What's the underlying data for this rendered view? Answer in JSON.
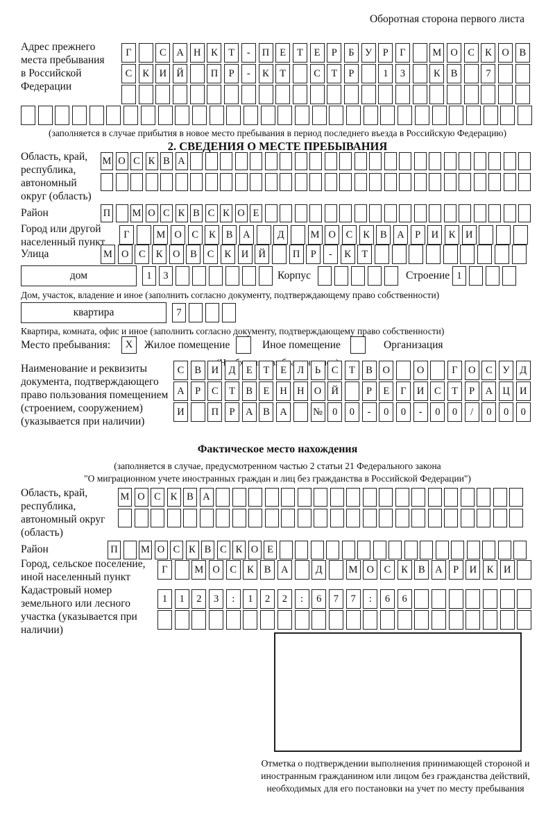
{
  "page": {
    "corner_note": "Оборотная сторона первого листа"
  },
  "prev_address": {
    "label": "Адрес прежнего места пребывания в Российской Федерации",
    "row1": {
      "text": "Г САНКТ-ПЕТЕРБУРГ МОСКОВ",
      "len": 24
    },
    "row2": {
      "text": "СКИЙ ПР-КТ СТР 13 КВ 7",
      "len": 24
    },
    "row3": {
      "text": "",
      "len": 24
    },
    "row4": {
      "text": "",
      "len": 30
    },
    "note": "(заполняется в случае прибытия в новое место пребывания в период последнего въезда в Российскую Федерацию)"
  },
  "section2": {
    "title": "2. СВЕДЕНИЯ О МЕСТЕ ПРЕБЫВАНИЯ",
    "oblast": {
      "label": "Область, край, республика, автономный округ (область)",
      "row1": {
        "text": "МОСКВА",
        "len": 29
      },
      "row2": {
        "text": "",
        "len": 29
      }
    },
    "rayon": {
      "label": "Район",
      "row": {
        "text": "П МОСКВСКОЕ",
        "len": 29
      }
    },
    "city": {
      "label": "Город или другой населенный пункт",
      "row": {
        "text": "Г МОСКВА Д МОСКВАРИКИ",
        "len": 24
      }
    },
    "street": {
      "label": "Улица",
      "row": {
        "text": "МОСКОВСКИЙ ПР-КТ",
        "len": 25
      }
    },
    "house": {
      "box_label": "дом",
      "cells": {
        "text": "13",
        "len": 8
      },
      "korpus_label": "Корпус",
      "korpus_cells": {
        "text": "",
        "len": 5
      },
      "stroenie_label": "Строение",
      "stroenie_cells": {
        "text": "1",
        "len": 4
      },
      "note": "Дом, участок, владение и иное (заполнить согласно документу, подтверждающему право собственности)"
    },
    "apartment": {
      "box_label": "квартира",
      "cells": {
        "text": "7",
        "len": 4
      },
      "note": "Квартира, комната, офис и иное (заполнить согласно документу, подтверждающему право собственности)"
    },
    "stay_type": {
      "label": "Место пребывания:",
      "options": [
        {
          "mark": "X",
          "label": "Жилое помещение"
        },
        {
          "mark": "",
          "label": "Иное помещение"
        },
        {
          "mark": "",
          "label": "Организация"
        }
      ],
      "note": "(Необходимо выбрать нужное)"
    },
    "doc": {
      "label": "Наименование и реквизиты документа, подтверждающего право пользования помещением (строением, сооружением) (указывается при наличии)",
      "row1": {
        "text": "СВИДЕТЕЛЬСТВО О ГОСУД",
        "len": 21
      },
      "row2": {
        "text": "АРСТВЕННОЙ РЕГИСТРАЦИ",
        "len": 21
      },
      "row3": {
        "text": "И ПРАВА №00-00-00/000",
        "len": 21
      }
    }
  },
  "actual_location": {
    "title": "Фактическое место нахождения",
    "note1": "(заполняется в случае, предусмотренном частью 2 статьи 21 Федерального закона",
    "note2": "\"О миграционном учете иностранных граждан и лиц без гражданства в Российской Федерации\")",
    "oblast": {
      "label": "Область, край, республика, автономный округ (область)",
      "row1": {
        "text": "МОСКВА",
        "len": 25
      },
      "row2": {
        "text": "",
        "len": 25
      }
    },
    "rayon": {
      "label": "Район",
      "row": {
        "text": "П МОСКВСКОЕ",
        "len": 27
      }
    },
    "city": {
      "label": "Город, сельское поселение, иной населенный пункт",
      "row": {
        "text": "Г МОСКВА Д МОСКВАРИКИ",
        "len": 22
      }
    },
    "cadastral": {
      "label": "Кадастровый номер земельного или лесного участка (указывается при наличии)",
      "row1": {
        "text": "1123:122:677:66",
        "len": 22
      },
      "row2": {
        "text": "",
        "len": 22
      }
    }
  },
  "stamp": {
    "caption": "Отметка о подтверждении выполнения принимающей стороной и иностранным гражданином или лицом без гражданства действий, необходимых для его постановки на учет по месту пребывания"
  }
}
